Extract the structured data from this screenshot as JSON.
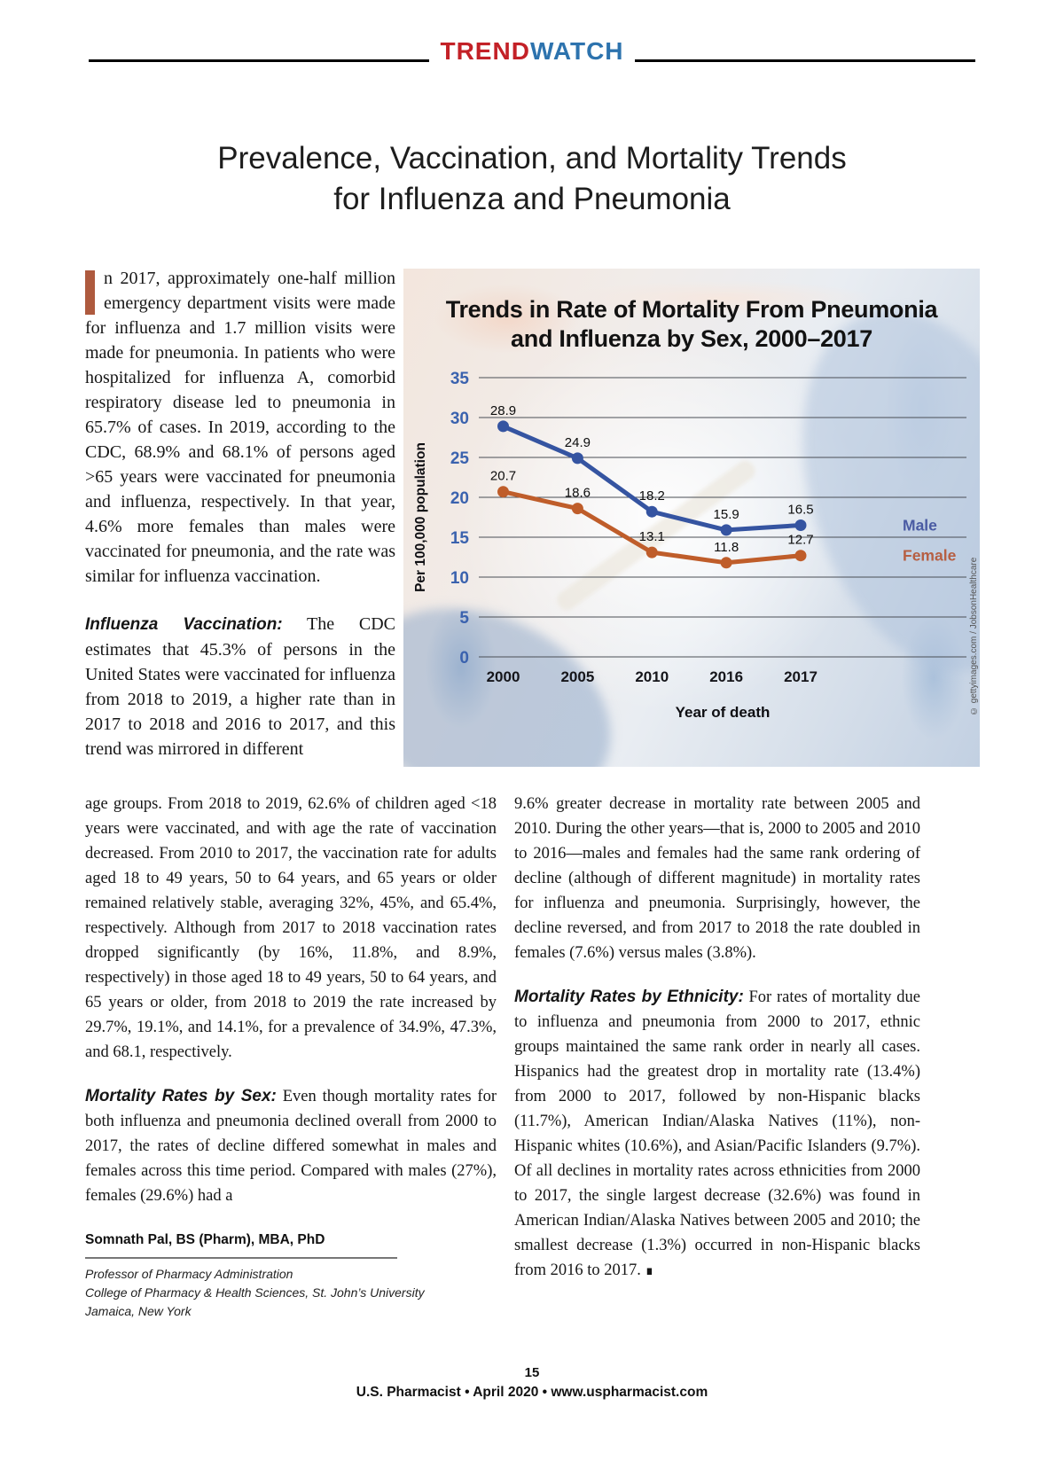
{
  "masthead": {
    "trend": "TREND",
    "watch": "WATCH"
  },
  "title": {
    "line1": "Prevalence, Vaccination, and Mortality Trends",
    "line2": "for Influenza and Pneumonia"
  },
  "article": {
    "intro": "n 2017, approximately one-half million emergency department visits were made for influenza and 1.7 million visits were made for pneumonia. In patients who were hospitalized for influenza A, comorbid respiratory disease led to pneumonia in 65.7% of cases. In 2019, according to the CDC, 68.9% and 68.1% of persons aged >65 years were vaccinated for pneumonia and influenza, respectively. In that year, 4.6% more females than males were vaccinated for pneumonia, and the rate was similar for influenza vaccination.",
    "influenza_heading": "Influenza Vaccination:",
    "influenza_part1": " The CDC estimates that 45.3% of persons in the United States were vaccinated for influenza from 2018 to 2019, a higher rate than in 2017 to 2018 and 2016 to 2017, and this trend was mirrored in different",
    "lower_left_para": "age groups. From 2018 to 2019, 62.6% of children aged <18 years were vaccinated, and with age the rate of vaccination decreased. From 2010 to 2017, the vaccination rate for adults aged 18 to 49 years, 50 to 64 years, and 65 years or older remained relatively stable, averaging 32%, 45%, and 65.4%, respectively. Although from 2017 to 2018 vaccination rates dropped significantly (by 16%, 11.8%, and 8.9%, respectively) in those aged 18 to 49 years, 50 to 64 years, and 65 years or older, from 2018 to 2019 the rate increased by 29.7%, 19.1%, and 14.1%, for a prevalence of 34.9%, 47.3%, and 68.1, respectively.",
    "mortality_sex_heading": "Mortality Rates by Sex:",
    "mortality_sex_text": " Even though mortality rates for both influenza and pneumonia declined overall from 2000 to 2017, the rates of decline differed somewhat in males and females across this time period. Compared with males (27%), females (29.6%) had a",
    "right_para1": "9.6% greater decrease in mortality rate between 2005 and 2010. During the other years—that is, 2000 to 2005 and 2010 to 2016—males and females had the same rank ordering of decline (although of different magnitude) in mortality rates for influenza and pneumonia. Surprisingly, however, the decline reversed, and from 2017 to 2018 the rate doubled in females (7.6%) versus males (3.8%).",
    "mortality_eth_heading": "Mortality Rates by Ethnicity:",
    "mortality_eth_text": " For rates of mortality due to influenza and pneumonia from 2000 to 2017, ethnic groups maintained the same rank order in nearly all cases. Hispanics had the greatest drop in mortality rate (13.4%) from 2000 to 2017, followed by non-Hispanic blacks (11.7%), American Indian/Alaska Natives (11%), non-Hispanic whites (10.6%), and Asian/Pacific Islanders (9.7%). Of all declines in mortality rates across ethnicities from 2000 to 2017, the single largest decrease (32.6%) was found in American Indian/Alaska Natives between 2005 and 2010; the smallest decrease (1.3%) occurred in non-Hispanic blacks from 2016 to 2017.",
    "end_mark": "∎"
  },
  "author": {
    "name": "Somnath Pal, BS (Pharm), MBA, PhD",
    "role": "Professor of Pharmacy Administration",
    "college": "College of Pharmacy & Health Sciences, St. John’s University",
    "location": "Jamaica, New York"
  },
  "footer": {
    "page_number": "15",
    "credit": "U.S. Pharmacist • April 2020 • www.uspharmacist.com"
  },
  "chart_data": {
    "type": "line",
    "title": "Trends in Rate of Mortality From Pneumonia and Influenza by Sex, 2000–2017",
    "categories": [
      "2000",
      "2005",
      "2010",
      "2016",
      "2017"
    ],
    "series": [
      {
        "name": "Male",
        "color": "#3554a1",
        "label_color": "#4a5ba3",
        "values": [
          28.9,
          24.9,
          18.2,
          15.9,
          16.5
        ]
      },
      {
        "name": "Female",
        "color": "#bf5d2a",
        "label_color": "#b65f43",
        "values": [
          20.7,
          18.6,
          13.1,
          11.8,
          12.7
        ]
      }
    ],
    "xlabel": "Year of death",
    "ylabel": "Per 100,000 population",
    "ylim": [
      0,
      35
    ],
    "ytick_step": 5,
    "grid": true,
    "legend_position": "inline-right",
    "tick_color": "#3a62ae",
    "credit": "© gettyimages.com / JobsonHealthcare"
  }
}
